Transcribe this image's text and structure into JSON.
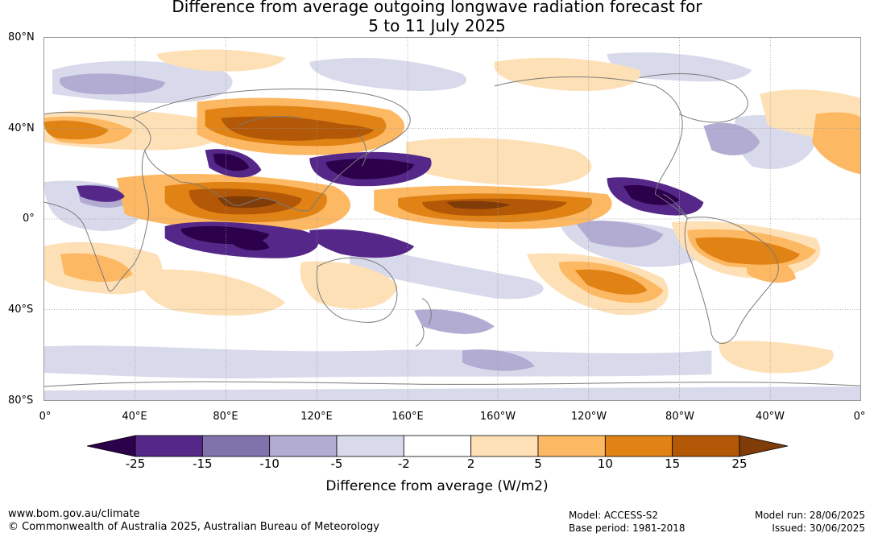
{
  "title_line1": "Difference from average outgoing longwave radiation forecast for",
  "title_line2": "5 to 11 July 2025",
  "lat_labels": [
    "80°N",
    "40°N",
    "0°",
    "40°S",
    "80°S"
  ],
  "lon_labels": [
    "0°",
    "40°E",
    "80°E",
    "120°E",
    "160°E",
    "160°W",
    "120°W",
    "80°W",
    "40°W",
    "0°"
  ],
  "colorbar": {
    "ticks": [
      "-25",
      "-15",
      "-10",
      "-5",
      "-2",
      "2",
      "5",
      "10",
      "15",
      "25"
    ],
    "colors": [
      "#2d004b",
      "#542788",
      "#8073ac",
      "#b2abd2",
      "#d8daeb",
      "#ffffff",
      "#fee0b6",
      "#fdb863",
      "#e08214",
      "#b35806",
      "#7f3b08"
    ],
    "label": "Difference from average (W/m2)"
  },
  "colors": {
    "land_outline": "#7a7a7a",
    "grid": "#9a9a9a"
  },
  "footer": {
    "url": "www.bom.gov.au/climate",
    "copyright": "© Commonwealth of Australia 2025, Australian Bureau of Meteorology",
    "model": "Model: ACCESS-S2",
    "base_period": "Base period: 1981-2018",
    "model_run": "Model run: 28/06/2025",
    "issued": "Issued: 30/06/2025"
  }
}
